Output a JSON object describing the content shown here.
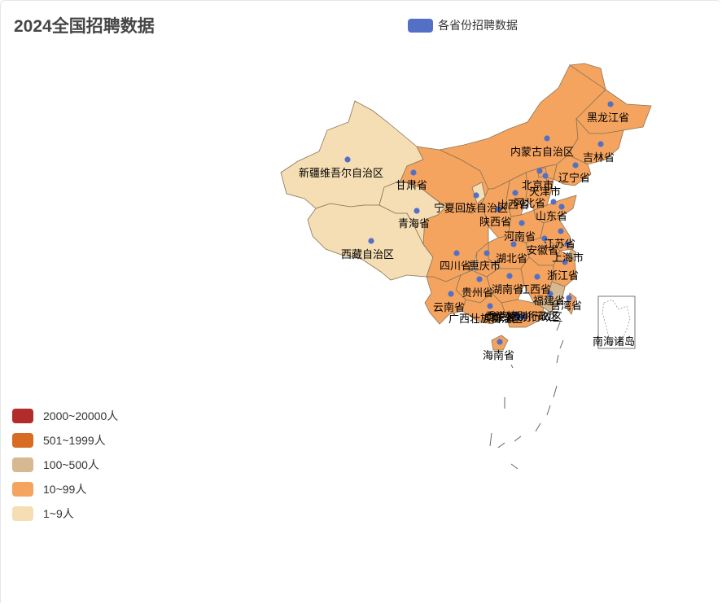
{
  "title": "2024全国招聘数据",
  "series_legend": {
    "label": "各省份招聘数据",
    "color": "#5470c6"
  },
  "visual_map": [
    {
      "label": "2000~20000人",
      "color": "#b22c2c"
    },
    {
      "label": "501~1999人",
      "color": "#d96c24"
    },
    {
      "label": "100~500人",
      "color": "#d6b992"
    },
    {
      "label": "10~99人",
      "color": "#f5a45f"
    },
    {
      "label": "1~9人",
      "color": "#f5deb3"
    }
  ],
  "provinces": [
    {
      "name": "黑龙江省"
    },
    {
      "name": "吉林省"
    },
    {
      "name": "内蒙古自治区"
    },
    {
      "name": "辽宁省"
    },
    {
      "name": "北京市"
    },
    {
      "name": "天津市"
    },
    {
      "name": "河北省"
    },
    {
      "name": "新疆维吾尔自治区"
    },
    {
      "name": "甘肃省"
    },
    {
      "name": "宁夏回族自治区"
    },
    {
      "name": "山西省"
    },
    {
      "name": "山东省"
    },
    {
      "name": "青海省"
    },
    {
      "name": "陕西省"
    },
    {
      "name": "河南省"
    },
    {
      "name": "江苏省"
    },
    {
      "name": "西藏自治区"
    },
    {
      "name": "安徽省"
    },
    {
      "name": "上海市"
    },
    {
      "name": "四川省"
    },
    {
      "name": "重庆市"
    },
    {
      "name": "湖北省"
    },
    {
      "name": "浙江省"
    },
    {
      "name": "湖南省"
    },
    {
      "name": "江西省"
    },
    {
      "name": "贵州省"
    },
    {
      "name": "福建省"
    },
    {
      "name": "台湾省"
    },
    {
      "name": "云南省"
    },
    {
      "name": "广西壮族自治区"
    },
    {
      "name": "广东省"
    },
    {
      "name": "香港特别行政区"
    },
    {
      "name": "澳门特别行政区"
    },
    {
      "name": "海南省"
    },
    {
      "name": "南海诸岛"
    }
  ]
}
